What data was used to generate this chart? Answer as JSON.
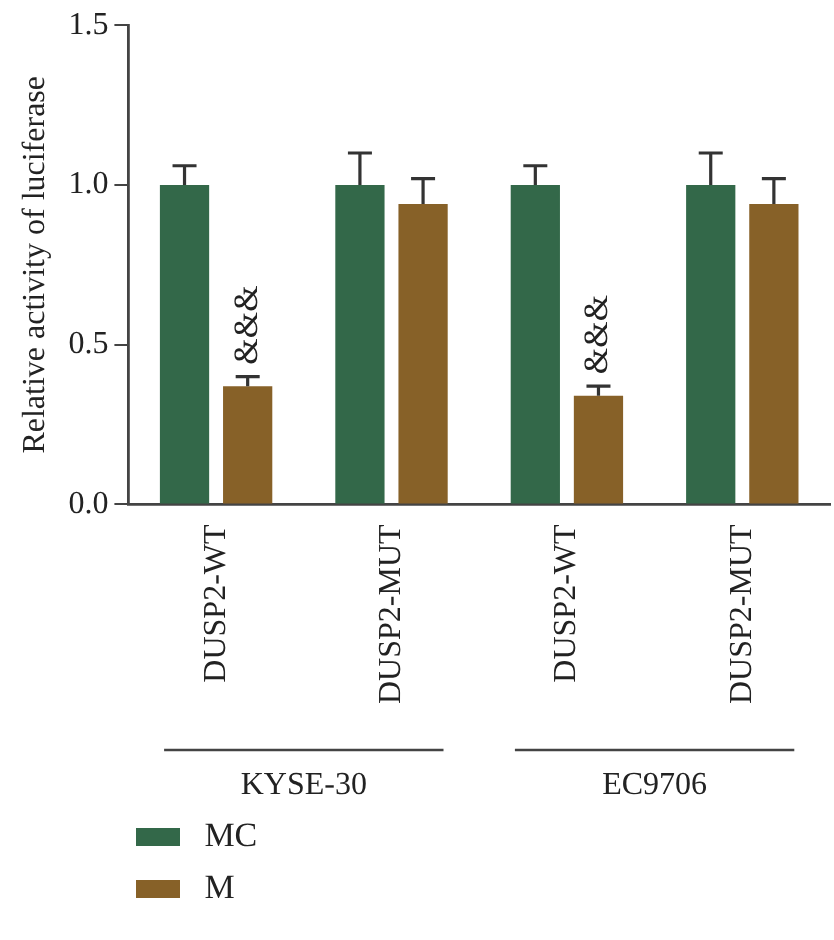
{
  "chart_data": {
    "type": "bar",
    "ylabel": "Relative activity of luciferase",
    "categories": [
      "DUSP2-WT",
      "DUSP2-MUT",
      "DUSP2-WT",
      "DUSP2-MUT"
    ],
    "series": [
      {
        "name": "MC",
        "color": "#336849",
        "values": [
          1.0,
          1.0,
          1.0,
          1.0
        ],
        "errors": [
          0.06,
          0.1,
          0.06,
          0.1
        ]
      },
      {
        "name": "M",
        "color": "#876128",
        "values": [
          0.37,
          0.94,
          0.34,
          0.94
        ],
        "errors": [
          0.03,
          0.08,
          0.03,
          0.08
        ]
      }
    ],
    "ylim": [
      0,
      1.5
    ],
    "yticks": [
      {
        "value": 0,
        "label": "0.0"
      },
      0.5,
      {
        "value": 1,
        "label": "1.0"
      },
      1.5
    ],
    "annotations": [
      {
        "text": "&&&",
        "y": 0.4
      },
      {
        "text": "&&&",
        "y": 0.37
      },
      "KYSE-30",
      "EC9706"
    ],
    "legend": "bottom left",
    "grid": false
  }
}
